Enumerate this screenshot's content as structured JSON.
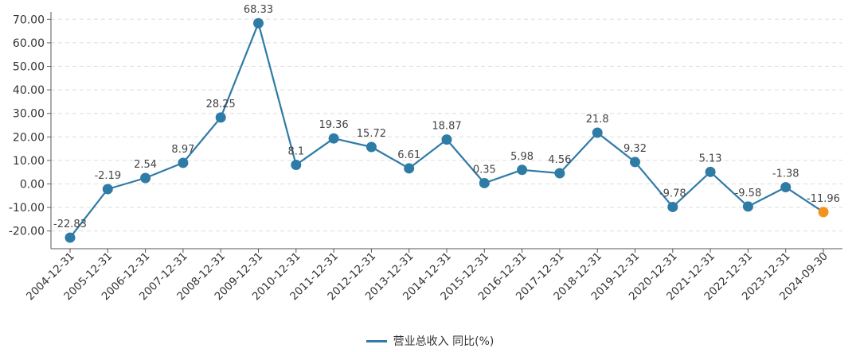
{
  "chart_data": {
    "type": "line",
    "title": "",
    "xlabel": "",
    "ylabel": "",
    "ylim": [
      -25,
      72
    ],
    "yticks": [
      "70.00",
      "60.00",
      "50.00",
      "40.00",
      "30.00",
      "20.00",
      "10.00",
      "0.00",
      "-10.00",
      "-20.00"
    ],
    "ytick_values": [
      70,
      60,
      50,
      40,
      30,
      20,
      10,
      0,
      -10,
      -20
    ],
    "grid": true,
    "legend_position": "bottom-center",
    "categories": [
      "2004-12-31",
      "2005-12-31",
      "2006-12-31",
      "2007-12-31",
      "2008-12-31",
      "2009-12-31",
      "2010-12-31",
      "2011-12-31",
      "2012-12-31",
      "2013-12-31",
      "2014-12-31",
      "2015-12-31",
      "2016-12-31",
      "2017-12-31",
      "2018-12-31",
      "2019-12-31",
      "2020-12-31",
      "2021-12-31",
      "2022-12-31",
      "2023-12-31",
      "2024-09-30"
    ],
    "series": [
      {
        "name": "营业总收入 同比(%)",
        "color": "#2e7ba6",
        "highlight_color": "#f5921e",
        "highlight_index": 20,
        "values": [
          -22.83,
          -2.19,
          2.54,
          8.97,
          28.25,
          68.33,
          8.1,
          19.36,
          15.72,
          6.61,
          18.87,
          0.35,
          5.98,
          4.56,
          21.8,
          9.32,
          -9.78,
          5.13,
          -9.58,
          -1.38,
          -11.96
        ],
        "labels": [
          "-22.83",
          "-2.19",
          "2.54",
          "8.97",
          "28.25",
          "68.33",
          "8.1",
          "19.36",
          "15.72",
          "6.61",
          "18.87",
          "0.35",
          "5.98",
          "4.56",
          "21.8",
          "9.32",
          "-9.78",
          "5.13",
          "-9.58",
          "-1.38",
          "-11.96"
        ]
      }
    ]
  }
}
